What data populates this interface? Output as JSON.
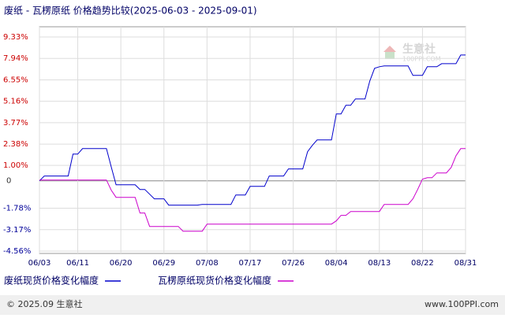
{
  "chart_data": {
    "type": "line",
    "title": "废纸 - 瓦楞原纸 价格趋势比较(2025-06-03 - 2025-09-01)",
    "x": [
      "06/03",
      "06/04",
      "06/05",
      "06/06",
      "06/07",
      "06/08",
      "06/09",
      "06/10",
      "06/11",
      "06/12",
      "06/13",
      "06/14",
      "06/15",
      "06/16",
      "06/17",
      "06/18",
      "06/19",
      "06/20",
      "06/21",
      "06/22",
      "06/23",
      "06/24",
      "06/25",
      "06/26",
      "06/27",
      "06/28",
      "06/29",
      "06/30",
      "07/01",
      "07/02",
      "07/03",
      "07/04",
      "07/05",
      "07/06",
      "07/07",
      "07/08",
      "07/09",
      "07/10",
      "07/11",
      "07/12",
      "07/13",
      "07/14",
      "07/15",
      "07/16",
      "07/17",
      "07/18",
      "07/19",
      "07/20",
      "07/21",
      "07/22",
      "07/23",
      "07/24",
      "07/25",
      "07/26",
      "07/27",
      "07/28",
      "07/29",
      "07/30",
      "07/31",
      "08/01",
      "08/02",
      "08/03",
      "08/04",
      "08/05",
      "08/06",
      "08/07",
      "08/08",
      "08/09",
      "08/10",
      "08/11",
      "08/12",
      "08/13",
      "08/14",
      "08/15",
      "08/16",
      "08/17",
      "08/18",
      "08/19",
      "08/20",
      "08/21",
      "08/22",
      "08/23",
      "08/24",
      "08/25",
      "08/26",
      "08/27",
      "08/28",
      "08/29",
      "08/30",
      "08/31"
    ],
    "xticks": [
      "06/03",
      "06/11",
      "06/20",
      "06/29",
      "07/08",
      "07/17",
      "07/26",
      "08/04",
      "08/13",
      "08/22",
      "08/31"
    ],
    "ylim": [
      -4.56,
      9.33
    ],
    "yticks": [
      {
        "value": 9.33,
        "label": "9.33%"
      },
      {
        "value": 7.94,
        "label": "7.94%"
      },
      {
        "value": 6.55,
        "label": "6.55%"
      },
      {
        "value": 5.16,
        "label": "5.16%"
      },
      {
        "value": 3.77,
        "label": "3.77%"
      },
      {
        "value": 2.38,
        "label": "2.38%"
      },
      {
        "value": 1.0,
        "label": "1.00%"
      },
      0,
      {
        "value": -1.78,
        "label": "-1.78%"
      },
      {
        "value": -3.17,
        "label": "-3.17%"
      },
      {
        "value": -4.56,
        "label": "-4.56%"
      }
    ],
    "grid": true,
    "series": [
      {
        "name": "废纸现货价格变化幅度",
        "color": "#0000cc",
        "values": [
          0,
          0.31,
          0.31,
          0.31,
          0.31,
          0.31,
          0.31,
          1.73,
          1.73,
          2.09,
          2.09,
          2.09,
          2.09,
          2.09,
          2.09,
          0.9,
          -0.26,
          -0.26,
          -0.26,
          -0.26,
          -0.26,
          -0.56,
          -0.56,
          -0.87,
          -1.17,
          -1.17,
          -1.17,
          -1.58,
          -1.58,
          -1.58,
          -1.58,
          -1.58,
          -1.58,
          -1.58,
          -1.53,
          -1.53,
          -1.53,
          -1.53,
          -1.53,
          -1.53,
          -1.53,
          -0.92,
          -0.92,
          -0.92,
          -0.36,
          -0.36,
          -0.36,
          -0.36,
          0.31,
          0.31,
          0.31,
          0.31,
          0.77,
          0.77,
          0.77,
          0.77,
          1.89,
          2.3,
          2.65,
          2.65,
          2.65,
          2.65,
          4.34,
          4.34,
          4.9,
          4.9,
          5.31,
          5.31,
          5.31,
          6.48,
          7.3,
          7.4,
          7.45,
          7.45,
          7.45,
          7.45,
          7.45,
          7.45,
          6.84,
          6.84,
          6.84,
          7.4,
          7.4,
          7.4,
          7.6,
          7.6,
          7.6,
          7.6,
          8.16,
          8.16
        ]
      },
      {
        "name": "瓦楞原纸现货价格变化幅度",
        "color": "#cc00cc",
        "values": [
          0.05,
          0.05,
          0.05,
          0.05,
          0.05,
          0.05,
          0.05,
          0.05,
          0.05,
          0.05,
          0.05,
          0.05,
          0.05,
          0.05,
          0.05,
          -0.61,
          -1.07,
          -1.07,
          -1.07,
          -1.07,
          -1.07,
          -2.09,
          -2.09,
          -2.96,
          -2.96,
          -2.96,
          -2.96,
          -2.96,
          -2.96,
          -2.96,
          -3.27,
          -3.27,
          -3.27,
          -3.27,
          -3.27,
          -2.81,
          -2.81,
          -2.81,
          -2.81,
          -2.81,
          -2.81,
          -2.81,
          -2.81,
          -2.81,
          -2.81,
          -2.81,
          -2.81,
          -2.81,
          -2.81,
          -2.81,
          -2.81,
          -2.81,
          -2.81,
          -2.81,
          -2.81,
          -2.81,
          -2.81,
          -2.81,
          -2.81,
          -2.81,
          -2.81,
          -2.81,
          -2.6,
          -2.24,
          -2.24,
          -1.99,
          -1.99,
          -1.99,
          -1.99,
          -1.99,
          -1.99,
          -1.99,
          -1.53,
          -1.53,
          -1.53,
          -1.53,
          -1.53,
          -1.53,
          -1.17,
          -0.56,
          0.1,
          0.2,
          0.2,
          0.51,
          0.51,
          0.51,
          0.87,
          1.63,
          2.09,
          2.09
        ]
      }
    ],
    "watermark": [
      "生意社",
      "100PPI.COM"
    ],
    "footer": {
      "left": "© 2025.09 生意社",
      "right": "www.100PPI.com"
    }
  }
}
